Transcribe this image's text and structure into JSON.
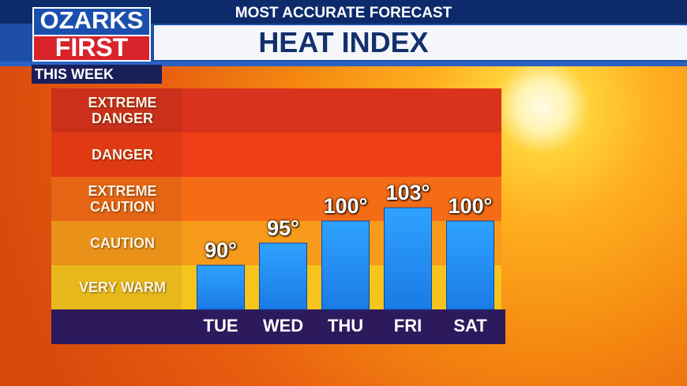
{
  "header": {
    "logo_top": "OZARKS",
    "logo_bottom": "FIRST",
    "kicker": "MOST ACCURATE FORECAST",
    "title": "HEAT INDEX",
    "subtitle": "THIS WEEK"
  },
  "chart_data": {
    "type": "bar",
    "categories": [
      "TUE",
      "WED",
      "THU",
      "FRI",
      "SAT"
    ],
    "values": [
      90,
      95,
      100,
      103,
      100
    ],
    "value_labels": [
      "90°",
      "95°",
      "100°",
      "103°",
      "100°"
    ],
    "color": "#1a7be6",
    "ylim": [
      80,
      130
    ],
    "annotations": [
      "EXTREME DANGER",
      "DANGER",
      "EXTREME CAUTION",
      "CAUTION",
      "VERY WARM"
    ],
    "annotation_colors": [
      "#d9331d",
      "#ee3e17",
      "#f46c16",
      "#f89b1b",
      "#f6c41d"
    ]
  }
}
